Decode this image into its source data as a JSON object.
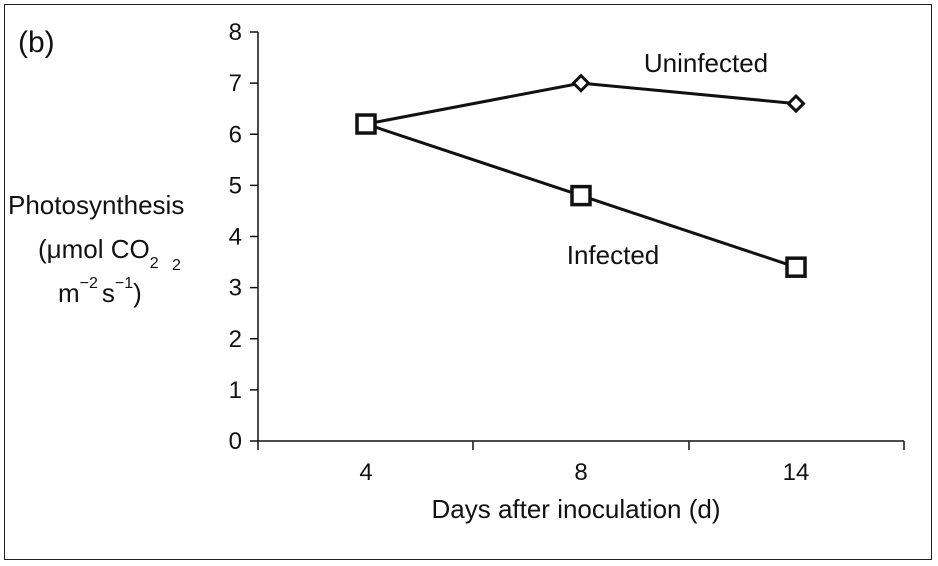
{
  "chart_data": {
    "type": "line",
    "panel_label": "(b)",
    "categories": [
      "4",
      "8",
      "14"
    ],
    "ylabel_line1": "Photosynthesis",
    "ylabel_line2_prefix": "(μmol CO",
    "ylabel_line2_sub": "2",
    "ylabel_line3_m": "m",
    "ylabel_line3_m_exp": "−2",
    "ylabel_line3_s": "s",
    "ylabel_line3_s_exp": "−1",
    "ylabel_line3_close": ")",
    "ylabel_stray_sup": "2",
    "xlabel": "Days after inoculation (d)",
    "ylim": [
      0,
      8
    ],
    "yticks": [
      "0",
      "1",
      "2",
      "3",
      "4",
      "5",
      "6",
      "7",
      "8"
    ],
    "series": [
      {
        "name": "Uninfected",
        "marker": "diamond",
        "values": [
          6.2,
          7.0,
          6.6
        ]
      },
      {
        "name": "Infected",
        "marker": "square",
        "values": [
          6.2,
          4.8,
          3.4
        ]
      }
    ],
    "grid": false,
    "legend": "inline labels"
  }
}
